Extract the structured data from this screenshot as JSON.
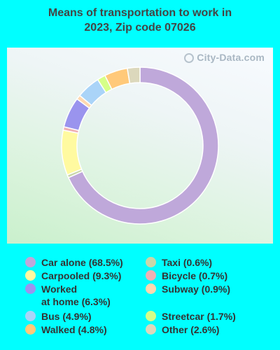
{
  "title_line1": "Means of transportation to work in",
  "title_line2": "2023, Zip code 07026",
  "watermark": "City-Data.com",
  "chart_data": {
    "type": "pie",
    "title": "Means of transportation to work in 2023, Zip code 07026",
    "legend_placement": "bottom",
    "slices": [
      {
        "label": "Car alone",
        "value": 68.5,
        "color": "#BFA8DA"
      },
      {
        "label": "Taxi",
        "value": 0.6,
        "color": "#C9D7A9"
      },
      {
        "label": "Carpooled",
        "value": 9.3,
        "color": "#FFFAA0"
      },
      {
        "label": "Bicycle",
        "value": 0.7,
        "color": "#EFB0B4"
      },
      {
        "label": "Worked at home",
        "value": 6.3,
        "color": "#9A94EE"
      },
      {
        "label": "Subway",
        "value": 0.9,
        "color": "#FFD8B0"
      },
      {
        "label": "Bus",
        "value": 4.9,
        "color": "#AAD4F8"
      },
      {
        "label": "Streetcar",
        "value": 1.7,
        "color": "#D6FF88"
      },
      {
        "label": "Walked",
        "value": 4.8,
        "color": "#FFC97A"
      },
      {
        "label": "Other",
        "value": 2.6,
        "color": "#DCD8BC"
      }
    ]
  },
  "legend": [
    {
      "text": "Car alone (68.5%)",
      "color": "#BFA8DA"
    },
    {
      "text": "Carpooled (9.3%)",
      "color": "#FFFAA0"
    },
    {
      "text": "Worked",
      "text2": "at home (6.3%)",
      "color": "#9A94EE"
    },
    {
      "text": "Bus (4.9%)",
      "color": "#AAD4F8"
    },
    {
      "text": "Walked (4.8%)",
      "color": "#FFC97A"
    },
    {
      "text": "Taxi (0.6%)",
      "color": "#C9D7A9"
    },
    {
      "text": "Bicycle (0.7%)",
      "color": "#EFB0B4"
    },
    {
      "text": "Subway (0.9%)",
      "color": "#FFD8B0"
    },
    {
      "text": "Streetcar (1.7%)",
      "color": "#D6FF88"
    },
    {
      "text": "Other (2.6%)",
      "color": "#DCD8BC"
    }
  ]
}
